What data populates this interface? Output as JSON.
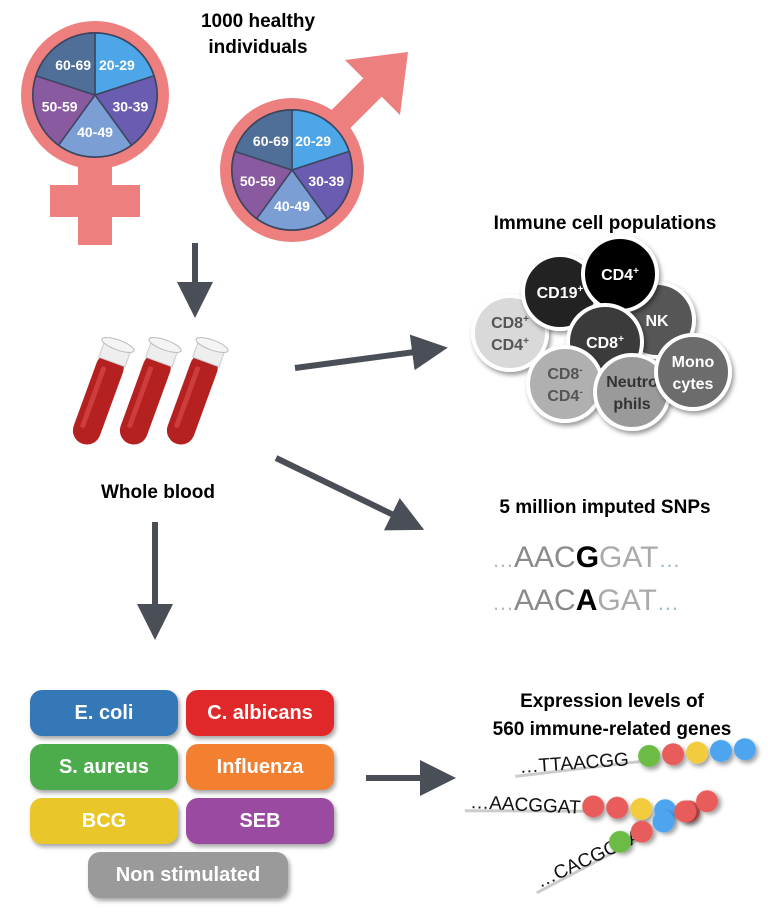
{
  "title": [
    "1000 healthy",
    "individuals"
  ],
  "age_groups": [
    "20-29",
    "30-39",
    "40-49",
    "50-59",
    "60-69"
  ],
  "age_colors": [
    "#4da6e8",
    "#6a5cb0",
    "#7b9fd4",
    "#8a5aa0",
    "#4f6f99"
  ],
  "symbol_color": "#ee7f7f",
  "whole_blood": "Whole blood",
  "immune": {
    "title": "Immune cell populations",
    "cells": [
      {
        "label": [
          "CD8",
          "CD4"
        ],
        "sup": [
          "+",
          "+"
        ],
        "color": "#d9d9d9",
        "text": "#555"
      },
      {
        "label": [
          "CD19"
        ],
        "sup": [
          "+"
        ],
        "color": "#222222",
        "text": "#fff"
      },
      {
        "label": [
          "NK"
        ],
        "sup": [
          ""
        ],
        "color": "#575757",
        "text": "#fff"
      },
      {
        "label": [
          "CD4"
        ],
        "sup": [
          "+"
        ],
        "color": "#000000",
        "text": "#fff"
      },
      {
        "label": [
          "CD8"
        ],
        "sup": [
          "+"
        ],
        "color": "#3a3a3a",
        "text": "#fff"
      },
      {
        "label": [
          "CD8",
          "CD4"
        ],
        "sup": [
          "-",
          "-"
        ],
        "color": "#b0b0b0",
        "text": "#555"
      },
      {
        "label": [
          "Neutro",
          "phils"
        ],
        "sup": [
          "",
          ""
        ],
        "color": "#9a9a9a",
        "text": "#333"
      },
      {
        "label": [
          "Mono",
          "cytes"
        ],
        "sup": [
          "",
          ""
        ],
        "color": "#6c6c6c",
        "text": "#fff"
      }
    ]
  },
  "snps": {
    "title": "5 million imputed SNPs",
    "rows": [
      {
        "pre": "AAC",
        "allele": "G",
        "post": "GAT"
      },
      {
        "pre": "AAC",
        "allele": "A",
        "post": "GAT"
      }
    ],
    "ellipsis": "…"
  },
  "stimuli": [
    {
      "label": "E. coli",
      "color": "#3478b8"
    },
    {
      "label": "C. albicans",
      "color": "#e0282a"
    },
    {
      "label": "S. aureus",
      "color": "#4cac4c"
    },
    {
      "label": "Influenza",
      "color": "#f28030"
    },
    {
      "label": "BCG",
      "color": "#e9c629"
    },
    {
      "label": "SEB",
      "color": "#9a4aa0"
    },
    {
      "label": "Non stimulated",
      "color": "#9a9a9a"
    }
  ],
  "expression": {
    "title": [
      "Expression levels of",
      "560 immune-related genes"
    ],
    "rows": [
      {
        "seq": "…TTAACGG",
        "dots": [
          "#6cbb45",
          "#e85c5c",
          "#f2cc3c",
          "#4ea5f0",
          "#4ea5f0"
        ]
      },
      {
        "seq": "…AACGGAT",
        "dots": [
          "#e85c5c",
          "#e85c5c",
          "#f2cc3c",
          "#4ea5f0",
          "#e85c5c"
        ]
      },
      {
        "seq": "…CACGCAA",
        "dots": [
          "#6cbb45",
          "#e85c5c",
          "#4ea5f0",
          "#e85c5c",
          "#e85c5c"
        ]
      }
    ]
  }
}
